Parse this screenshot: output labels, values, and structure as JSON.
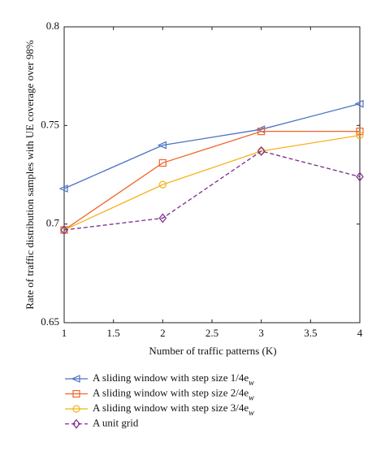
{
  "chart_data": {
    "type": "line",
    "x_label": "Number of traffic patterns (K)",
    "y_label": "Rate of traffic distribution samples with UE coverage over 98%",
    "x": [
      1,
      2,
      3,
      4
    ],
    "xlim": [
      1,
      4
    ],
    "xticks": [
      1,
      1.5,
      2,
      2.5,
      3,
      3.5,
      4
    ],
    "ylim": [
      0.65,
      0.8
    ],
    "yticks": [
      0.65,
      0.7,
      0.75,
      0.8
    ],
    "series": [
      {
        "name": "A sliding window with step size 1/4e_w",
        "color": "#4a72c4",
        "marker": "triangle-left",
        "dash": false,
        "values": [
          0.718,
          0.74,
          0.748,
          0.761
        ]
      },
      {
        "name": "A sliding window with step size 2/4e_w",
        "color": "#f0652a",
        "marker": "square",
        "dash": false,
        "values": [
          0.697,
          0.731,
          0.747,
          0.747
        ]
      },
      {
        "name": "A sliding window with step size 3/4e_w",
        "color": "#f5b21b",
        "marker": "circle",
        "dash": false,
        "values": [
          0.697,
          0.72,
          0.737,
          0.745
        ]
      },
      {
        "name": "A unit grid",
        "color": "#7a2a8c",
        "marker": "diamond",
        "dash": true,
        "values": [
          0.697,
          0.703,
          0.737,
          0.724
        ]
      }
    ]
  }
}
